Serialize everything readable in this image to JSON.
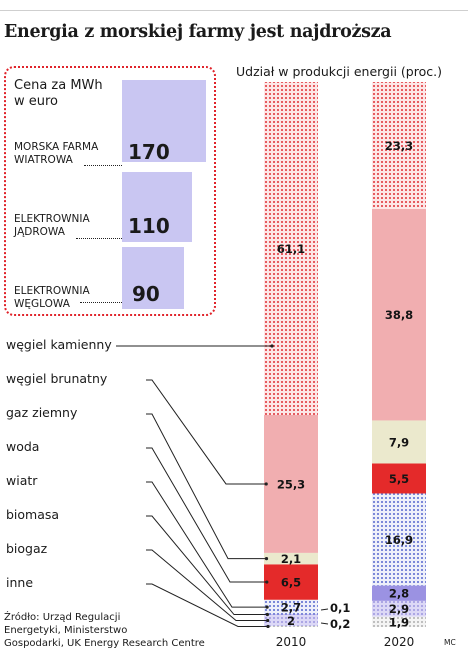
{
  "title": "Energia z morskiej farmy jest najdroższa",
  "inset": {
    "title_line1": "Cena za MWh",
    "title_line2": "w euro",
    "items": [
      {
        "label_line1": "MORSKA FARMA",
        "label_line2": "WIATROWA",
        "value": "170"
      },
      {
        "label_line1": "ELEKTROWNIA",
        "label_line2": "JĄDROWA",
        "value": "110"
      },
      {
        "label_line1": "ELEKTROWNIA",
        "label_line2": "WĘGLOWA",
        "value": "90"
      }
    ]
  },
  "source_line1": "Źródło: Urząd Regulacji",
  "source_line2": "Energetyki, Ministerstwo",
  "source_line3": "Gospodarki, UK Energy Research Centre",
  "credit": "MC",
  "chart_data": {
    "type": "bar",
    "stacked": true,
    "title": "Udział w produkcji energii (proc.)",
    "categories": [
      "2010",
      "2020"
    ],
    "ylim": [
      0,
      100
    ],
    "series": [
      {
        "name": "inne",
        "values": [
          0.2,
          1.9
        ],
        "labels": [
          "0,2",
          "1,9"
        ],
        "color": "#f4f4f4",
        "pattern": "dots-grey"
      },
      {
        "name": "biogaz",
        "values": [
          2.0,
          2.9
        ],
        "labels": [
          "2",
          "2,9"
        ],
        "color": "#d8d4f4",
        "pattern": "dots-lav"
      },
      {
        "name": "biomasa",
        "values": [
          0.1,
          2.8
        ],
        "labels": [
          "0,1",
          "2,8"
        ],
        "color": "#9b92e2",
        "pattern": "solid"
      },
      {
        "name": "wiatr",
        "values": [
          2.7,
          16.9
        ],
        "labels": [
          "2,7",
          "16,9"
        ],
        "color": "#eef0fa",
        "pattern": "dots-blue"
      },
      {
        "name": "woda",
        "values": [
          6.5,
          5.5
        ],
        "labels": [
          "6,5",
          "5,5"
        ],
        "color": "#e42a2a",
        "pattern": "solid"
      },
      {
        "name": "gaz ziemny",
        "values": [
          2.1,
          7.9
        ],
        "labels": [
          "2,1",
          "7,9"
        ],
        "color": "#ebe9cd",
        "pattern": "solid"
      },
      {
        "name": "węgiel brunatny",
        "values": [
          25.3,
          38.8
        ],
        "labels": [
          "25,3",
          "38,8"
        ],
        "color": "#f1aeb0",
        "pattern": "solid"
      },
      {
        "name": "węgiel kamienny",
        "values": [
          61.1,
          23.3
        ],
        "labels": [
          "61,1",
          "23,3"
        ],
        "color": "#fbe0e0",
        "pattern": "dots-red"
      }
    ],
    "legend_order": [
      "węgiel kamienny",
      "węgiel brunatny",
      "gaz ziemny",
      "woda",
      "wiatr",
      "biomasa",
      "biogaz",
      "inne"
    ],
    "inset": {
      "type": "bar",
      "categories": [
        "MORSKA FARMA WIATROWA",
        "ELEKTROWNIA JĄDROWA",
        "ELEKTROWNIA WĘGLOWA"
      ],
      "values": [
        170,
        110,
        90
      ]
    }
  }
}
